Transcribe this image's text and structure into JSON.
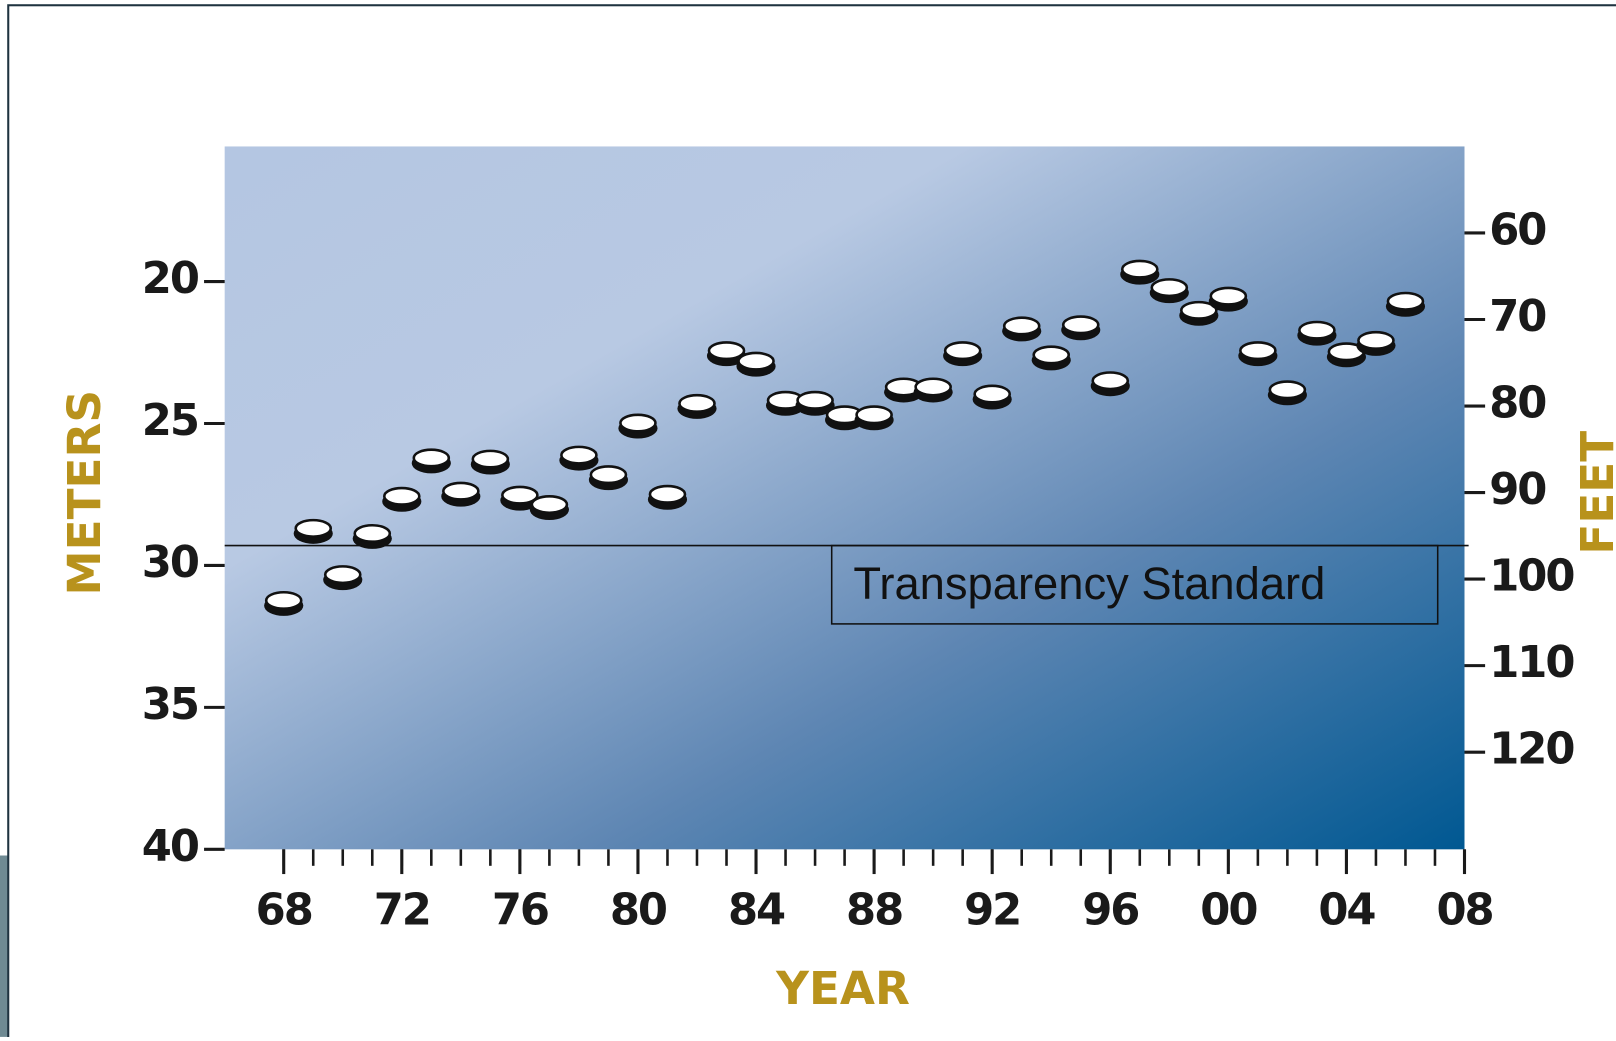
{
  "chart_data": {
    "type": "scatter",
    "x_label": "YEAR",
    "y_label": "METERS",
    "y2_label": "FEET",
    "xlim": [
      1966,
      2008
    ],
    "xticks": [
      {
        "value": 1968,
        "label": "68"
      },
      {
        "value": 1972,
        "label": "72"
      },
      {
        "value": 1976,
        "label": "76"
      },
      {
        "value": 1980,
        "label": "80"
      },
      {
        "value": 1984,
        "label": "84"
      },
      {
        "value": 1988,
        "label": "88"
      },
      {
        "value": 1992,
        "label": "92"
      },
      {
        "value": 1996,
        "label": "96"
      },
      {
        "value": 2000,
        "label": "00"
      },
      {
        "value": 2004,
        "label": "04"
      },
      {
        "value": 2008,
        "label": "08"
      }
    ],
    "xminorticks": [
      1968,
      1969,
      1970,
      1971,
      1972,
      1973,
      1974,
      1975,
      1976,
      1977,
      1978,
      1979,
      1980,
      1981,
      1982,
      1983,
      1984,
      1985,
      1986,
      1987,
      1988,
      1989,
      1990,
      1991,
      1992,
      1993,
      1994,
      1995,
      1996,
      1997,
      1998,
      1999,
      2000,
      2001,
      2002,
      2003,
      2004,
      2005,
      2006,
      2007,
      2008
    ],
    "ylim": [
      40,
      15.24
    ],
    "yticks": [
      20,
      25,
      30,
      35,
      40
    ],
    "y2lim": [
      131.23,
      50
    ],
    "y2ticks": [
      60,
      70,
      80,
      90,
      100,
      110,
      120
    ],
    "series": [
      {
        "color": "#ffffff",
        "x": [
          1968,
          1969,
          1970,
          1971,
          1972,
          1973,
          1974,
          1975,
          1976,
          1977,
          1978,
          1979,
          1980,
          1981,
          1982,
          1983,
          1984,
          1985,
          1986,
          1987,
          1988,
          1989,
          1990,
          1991,
          1992,
          1993,
          1994,
          1995,
          1996,
          1997,
          1998,
          1999,
          2000,
          2001,
          2002,
          2003,
          2004,
          2005,
          2006
        ],
        "values": [
          31.27,
          28.73,
          30.36,
          28.91,
          27.6,
          26.25,
          27.42,
          26.29,
          27.56,
          27.89,
          26.15,
          26.84,
          25.02,
          27.53,
          24.33,
          22.47,
          22.84,
          24.22,
          24.22,
          24.73,
          24.73,
          23.75,
          23.75,
          22.47,
          24.0,
          21.6,
          22.62,
          21.56,
          23.53,
          19.6,
          20.25,
          21.05,
          20.55,
          22.47,
          23.85,
          21.75,
          22.51,
          22.11,
          20.73
        ]
      }
    ],
    "reference_lines": [
      {
        "value": 29.3,
        "label": "Transparency Standard"
      }
    ]
  }
}
